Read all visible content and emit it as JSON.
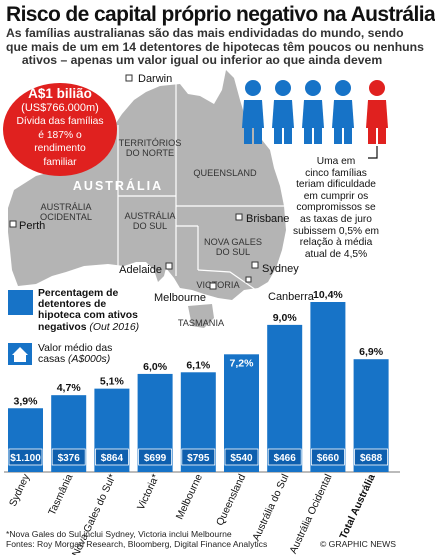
{
  "title": "Risco de capital próprio negativo na Austrália",
  "subtitle": {
    "line1": "As famílias australianas são das mais endividadas do mundo, sendo",
    "line2": "que mais de um em 14 detentores de hipotecas têm poucos ou nenhuns",
    "line3": "ativos – apenas um valor igual ou inferior ao que ainda devem"
  },
  "callout": {
    "value": "A$1 bilião",
    "usd": "(US$766.000m)",
    "line1": "Dívida das famílias",
    "line2": "é 187% o",
    "line3": "rendimento",
    "line4": "familiar"
  },
  "map": {
    "country": "AUSTRÁLIA",
    "regions": {
      "nt_line1": "TERRITÓRIOS",
      "nt_line2": "DO NORTE",
      "qld": "QUEENSLAND",
      "wa_line1": "AUSTRÁLIA",
      "wa_line2": "OCIDENTAL",
      "sa_line1": "AUSTRÁLIA",
      "sa_line2": "DO SUL",
      "nsw_line1": "NOVA GALES",
      "nsw_line2": "DO SUL",
      "vic": "VICTORIA",
      "tas": "TASMANIA"
    },
    "cities": {
      "darwin": "Darwin",
      "brisbane": "Brisbane",
      "perth": "Perth",
      "adelaide": "Adelaide",
      "sydney": "Sydney",
      "melbourne": "Melbourne",
      "canberra": "Canberra"
    },
    "colors": {
      "land": "#b4b4b4",
      "border": "#ffffff",
      "accent_red": "#e0211f",
      "people_blue": "#1773c7"
    }
  },
  "family_note": {
    "line1": "Uma em",
    "line2": "cinco famílias",
    "line3": "teriam dificuldade",
    "line4": "em cumprir os",
    "line5": "compromissos se",
    "line6": "as taxas de juro",
    "line7": "subissem 0,5% em",
    "line8": "relação à média",
    "line9": "atual de 4,5%"
  },
  "legend": {
    "bar_line1": "Percentagem de",
    "bar_line2": "detentores de",
    "bar_line3": "hipoteca com ativos",
    "bar_line4": "negativos",
    "bar_period": "(Out 2016)",
    "house_line1": "Valor médio das",
    "house_line2": "casas",
    "house_unit": "(A$000s)"
  },
  "chart_data": {
    "type": "bar",
    "categories": [
      "Sydney",
      "Tasmânia",
      "Nova Gales do Sul*",
      "Victoria*",
      "Melbourne",
      "Queensland",
      "Austrália do Sul",
      "Austrália Ocidental",
      "Total Austrália"
    ],
    "values": [
      3.9,
      4.7,
      5.1,
      6.0,
      6.1,
      7.2,
      9.0,
      10.4,
      6.9
    ],
    "value_labels": [
      "3,9%",
      "4,7%",
      "5,1%",
      "6,0%",
      "6,1%",
      "7,2%",
      "9,0%",
      "10,4%",
      "6,9%"
    ],
    "house_values": [
      "$1.100",
      "$376",
      "$864",
      "$699",
      "$795",
      "$540",
      "$466",
      "$660",
      "$688"
    ],
    "ylim": [
      0,
      10.4
    ],
    "bar_color": "#1773c7",
    "label_box_color": "#0e5fae",
    "highlight_index": 5,
    "total_index": 8
  },
  "footnote": {
    "line1": "*Nova Gales do Sul inclui Sydney, Victoria inclui Melbourne",
    "line2": "Fontes: Roy Morgan Research, Bloomberg, Digital Finance Analytics"
  },
  "copyright": "© GRAPHIC NEWS"
}
